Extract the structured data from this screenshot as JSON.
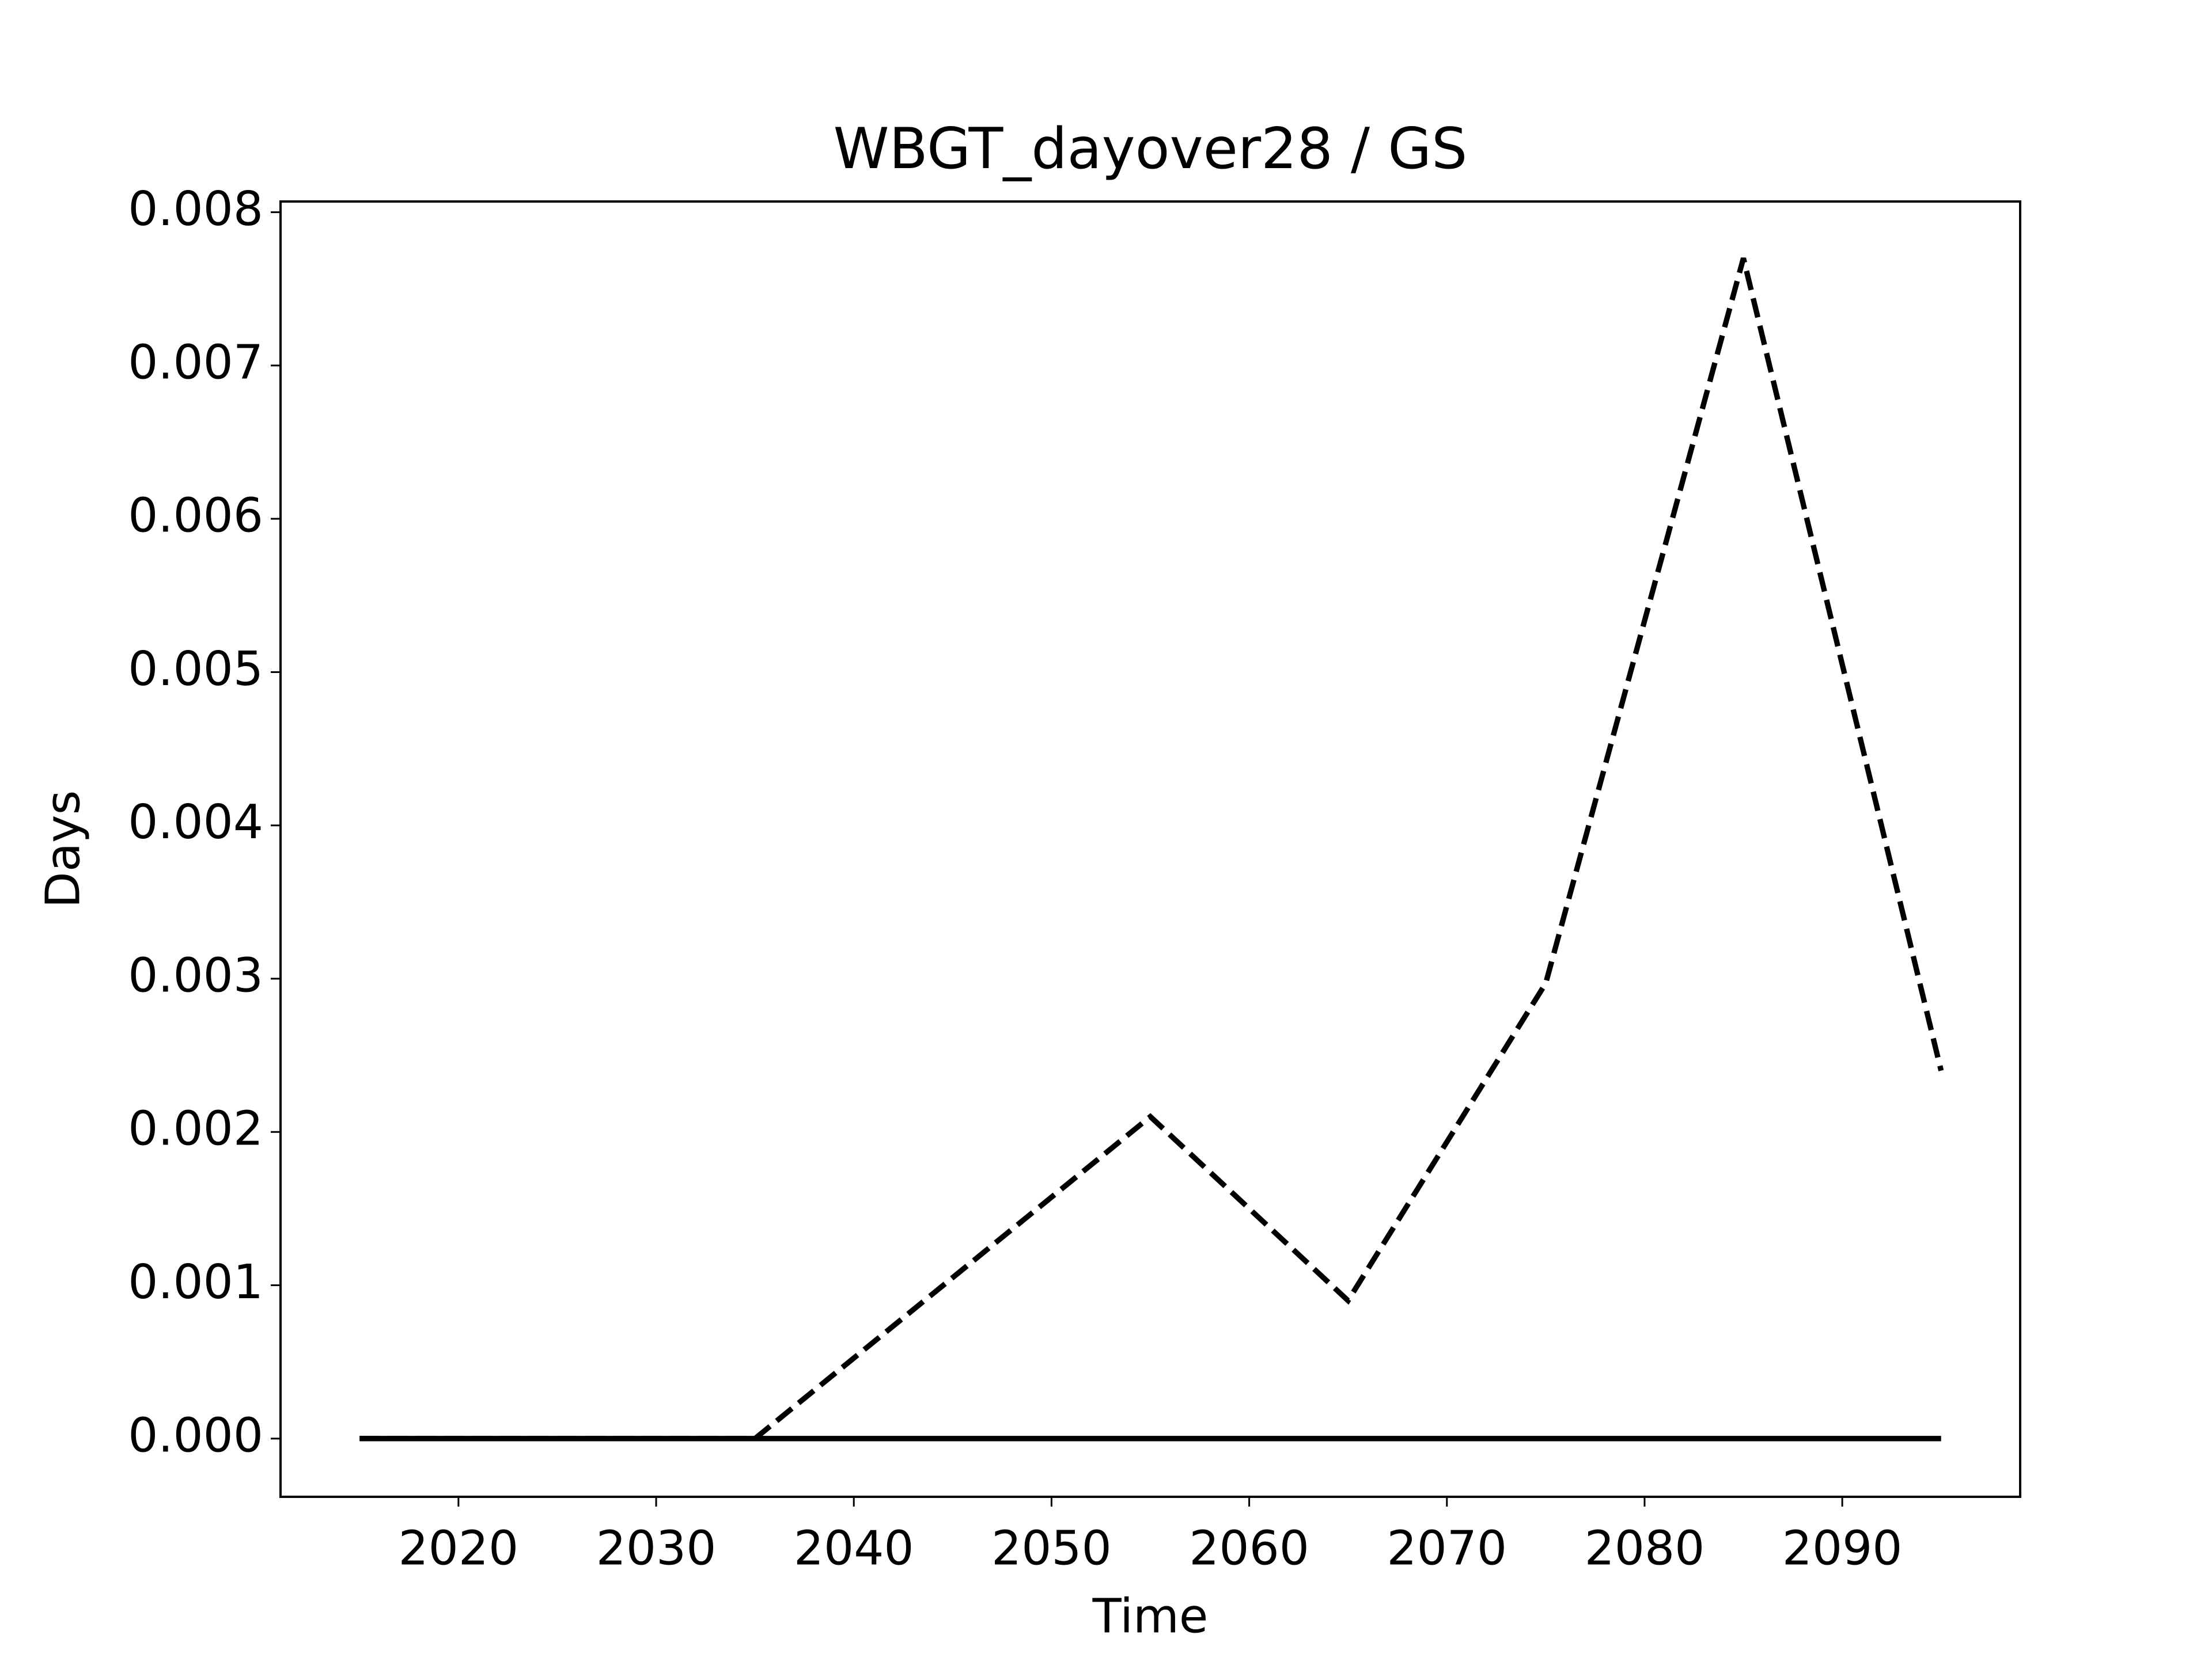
{
  "chart_data": {
    "type": "line",
    "title": "WBGT_dayover28 / GS",
    "x_label": "Time",
    "y_label": "Days",
    "x": [
      2015,
      2025,
      2035,
      2045,
      2055,
      2065,
      2075,
      2085,
      2095
    ],
    "series": [
      {
        "color": "#000000",
        "linestyle": "solid",
        "values": [
          0,
          0,
          0,
          0,
          0,
          0,
          0,
          0,
          0
        ]
      },
      {
        "color": "#000000",
        "linestyle": "dashed",
        "values": [
          0,
          0,
          0,
          0.00105,
          0.0021,
          0.0009,
          0.00297,
          0.0077,
          0.0024
        ]
      }
    ],
    "xlim": [
      2011,
      2099
    ],
    "xticks": [
      2020,
      2030,
      2040,
      2050,
      2060,
      2070,
      2080,
      2090
    ],
    "ylim": [
      -0.00038,
      0.00807
    ],
    "yticks": [
      {
        "value": 0,
        "label": "0.000"
      },
      {
        "value": 0.001,
        "label": "0.001"
      },
      {
        "value": 0.002,
        "label": "0.002"
      },
      {
        "value": 0.003,
        "label": "0.003"
      },
      {
        "value": 0.004,
        "label": "0.004"
      },
      {
        "value": 0.005,
        "label": "0.005"
      },
      {
        "value": 0.006,
        "label": "0.006"
      },
      {
        "value": 0.007,
        "label": "0.007"
      },
      {
        "value": 0.008,
        "label": "0.008"
      }
    ],
    "grid": false
  }
}
